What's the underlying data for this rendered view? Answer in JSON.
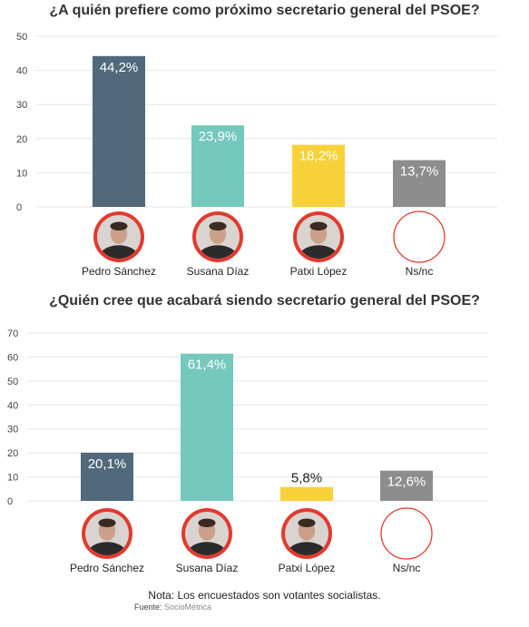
{
  "chart_data": [
    {
      "type": "bar",
      "title": "¿A quién prefiere como próximo secretario general del PSOE?",
      "categories": [
        "Pedro Sánchez",
        "Susana Díaz",
        "Patxi López",
        "Ns/nc"
      ],
      "values": [
        44.2,
        23.9,
        18.2,
        13.7
      ],
      "value_labels": [
        "44,2%",
        "23,9%",
        "18,2%",
        "13,7%"
      ],
      "colors": [
        "#50697b",
        "#74c8bc",
        "#f6d13a",
        "#8d8d8d"
      ],
      "yticks": [
        0,
        10,
        20,
        30,
        40,
        50
      ],
      "ylim": [
        0,
        50
      ],
      "grid": true
    },
    {
      "type": "bar",
      "title": "¿Quién cree que acabará siendo secretario general del PSOE?",
      "categories": [
        "Pedro Sánchez",
        "Susana Díaz",
        "Patxi López",
        "Ns/nc"
      ],
      "values": [
        20.1,
        61.4,
        5.8,
        12.6
      ],
      "value_labels": [
        "20,1%",
        "61,4%",
        "5,8%",
        "12,6%"
      ],
      "colors": [
        "#50697b",
        "#74c8bc",
        "#f6d13a",
        "#8d8d8d"
      ],
      "yticks": [
        0,
        10,
        20,
        30,
        40,
        50,
        60,
        70
      ],
      "ylim": [
        0,
        70
      ],
      "grid": true
    }
  ],
  "avatars": [
    "person-photo-icon",
    "person-photo-icon",
    "person-photo-icon",
    "empty-circle-icon"
  ],
  "avatar_ring_color": "#e23a2f",
  "note": "Nota: Los encuestados son votantes socialistas.",
  "source_label": "Fuente:",
  "source_value": "SocioMétrica"
}
